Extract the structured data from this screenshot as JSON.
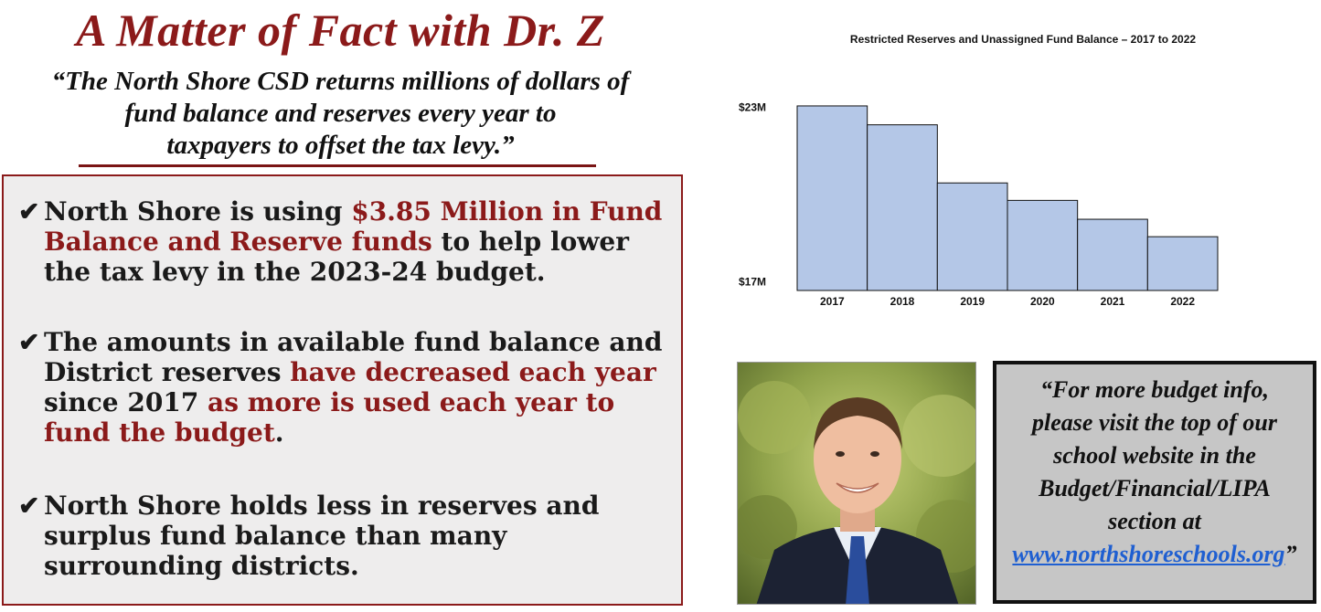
{
  "header": {
    "title": "A Matter of Fact with Dr. Z",
    "quote_lines": [
      "“The North Shore CSD returns millions of dollars of",
      "fund balance and reserves every year to",
      "taxpayers to offset the tax levy.”"
    ]
  },
  "bullets": {
    "check_glyph": "✔",
    "b1": {
      "t1": "North Shore is using ",
      "h1": "$3.85 Million in Fund Balance and Reserve funds",
      "t2": " to help lower the tax levy in the 2023-24 budget."
    },
    "b2": {
      "t1": "The amounts in available fund balance and District reserves ",
      "h1": "have decreased each year",
      "t2": " since 2017 ",
      "h2": "as more is used each year to fund the budget",
      "t3": "."
    },
    "b3": {
      "t1": "North Shore holds less in reserves and surplus fund balance than many surrounding districts."
    }
  },
  "chart_data": {
    "type": "bar",
    "title": "Restricted Reserves and Unassigned Fund Balance – 2017 to 2022",
    "categories": [
      "2017",
      "2018",
      "2019",
      "2020",
      "2021",
      "2022"
    ],
    "values": [
      23.05,
      22.4,
      20.4,
      19.8,
      19.15,
      18.55
    ],
    "y_ticks": [
      {
        "value": 17,
        "label": "$17M"
      },
      {
        "value": 23,
        "label": "$23M"
      }
    ],
    "ylim": [
      16.7,
      23.3
    ],
    "bar_color": "#b4c7e7",
    "units": "$M"
  },
  "info": {
    "lines": [
      "“For more budget info,",
      "please visit the top of our",
      "school website in the",
      "Budget/Financial/LIPA",
      "section at"
    ],
    "link": "www.northshoreschools.org",
    "close_quote": "”"
  },
  "colors": {
    "accent_red": "#8b1a1a",
    "panel_bg": "#eeeded",
    "info_bg": "#c6c6c6",
    "link": "#1f5fd1"
  }
}
